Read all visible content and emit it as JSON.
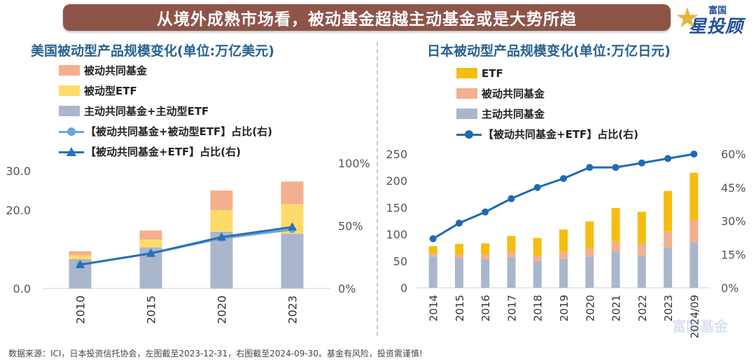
{
  "banner": {
    "title": "从境外成熟市场看，被动基金超越主动基金或是大势所趋"
  },
  "logo": {
    "top_text": "富国",
    "main_text": "星投顾"
  },
  "watermark": "富国基金",
  "footnote": "数据来源：ICI，日本投资信托协会，左图截至2023-12-31，右图截至2024-09-30。基金有风险，投资需谨慎!",
  "colors": {
    "title": "#27628f",
    "passive_mutual": "#f3b08e",
    "passive_etf": "#fddb6b",
    "active": "#aab6cc",
    "jp_etf": "#f5bd10",
    "jp_passive": "#f3b08e",
    "jp_active": "#aab6cc",
    "line_circle": "#6fa5d6",
    "line_triangle": "#2a70b6",
    "jp_line": "#1f6ab4"
  },
  "chart_data": [
    {
      "type": "bar",
      "stacked": true,
      "title": "美国被动型产品规模变化(单位:万亿美元)",
      "categories": [
        "2010",
        "2015",
        "2020",
        "2023"
      ],
      "series": [
        {
          "name": "主动共同基金+主动型ETF",
          "values": [
            7.5,
            10.5,
            14.5,
            14.0
          ]
        },
        {
          "name": "被动型ETF",
          "values": [
            1.0,
            2.0,
            5.5,
            7.5
          ]
        },
        {
          "name": "被动共同基金",
          "values": [
            1.0,
            2.3,
            5.0,
            5.8
          ]
        }
      ],
      "line_series": [
        {
          "name": "【被动共同基金+被动型ETF】占比(右)",
          "marker": "circle",
          "values": [
            0.19,
            0.28,
            0.4,
            0.47
          ]
        },
        {
          "name": "【被动共同基金+ETF】占比(右)",
          "marker": "triangle",
          "values": [
            0.19,
            0.28,
            0.41,
            0.49
          ]
        }
      ],
      "y_left": {
        "ticks": [
          "0.0",
          "20.0",
          "30.0"
        ],
        "tick_values": [
          0,
          20,
          30
        ],
        "lim": [
          0,
          32
        ]
      },
      "y_right": {
        "ticks": [
          "0%",
          "50%",
          "100%"
        ],
        "tick_values": [
          0,
          0.5,
          1.0
        ],
        "lim": [
          0,
          1.0
        ]
      }
    },
    {
      "type": "bar",
      "stacked": true,
      "title": "日本被动型产品规模变化(单位:万亿日元)",
      "categories": [
        "2014",
        "2015",
        "2016",
        "2017",
        "2018",
        "2019",
        "2020",
        "2021",
        "2022",
        "2023",
        "2024/09"
      ],
      "series": [
        {
          "name": "主动共同基金",
          "values": [
            58,
            55,
            53,
            57,
            50,
            54,
            58,
            68,
            60,
            75,
            85
          ]
        },
        {
          "name": "被动共同基金",
          "values": [
            6,
            7,
            9,
            11,
            10,
            13,
            15,
            18,
            22,
            30,
            42
          ]
        },
        {
          "name": "ETF",
          "values": [
            14,
            20,
            21,
            29,
            33,
            42,
            51,
            63,
            60,
            76,
            88
          ]
        }
      ],
      "line_series": [
        {
          "name": "【被动共同基金+ETF】占比(右)",
          "marker": "circle",
          "values": [
            0.22,
            0.29,
            0.34,
            0.4,
            0.45,
            0.49,
            0.54,
            0.54,
            0.56,
            0.58,
            0.6
          ]
        }
      ],
      "y_left": {
        "ticks": [
          "0",
          "50",
          "100",
          "150",
          "200",
          "250"
        ],
        "tick_values": [
          0,
          50,
          100,
          150,
          200,
          250
        ],
        "lim": [
          0,
          250
        ]
      },
      "y_right": {
        "ticks": [
          "0%",
          "15%",
          "30%",
          "45%",
          "60%"
        ],
        "tick_values": [
          0,
          0.15,
          0.3,
          0.45,
          0.6
        ],
        "lim": [
          0,
          0.6
        ]
      }
    }
  ]
}
